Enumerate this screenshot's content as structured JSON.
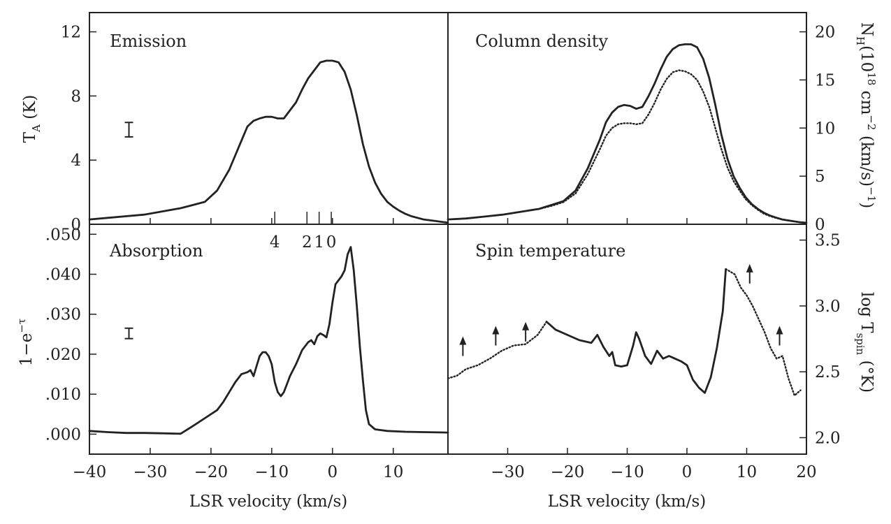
{
  "figure": {
    "xlabel": "LSR velocity (km/s)",
    "left_column_xticks": [
      "−40",
      "−30",
      "−20",
      "−10",
      "0",
      "10"
    ],
    "right_column_xticks": [
      "−30",
      "−20",
      "−10",
      "0",
      "10",
      "20"
    ]
  },
  "chart_data": [
    {
      "panel": "top-left",
      "type": "line",
      "title": "Emission",
      "ylabel_left": {
        "main": "T",
        "sub": "A",
        "rest": " (K)"
      },
      "xlim": [
        -40,
        19
      ],
      "ylim": [
        0,
        13.2
      ],
      "yticks": [
        {
          "value": 0,
          "label": "0"
        },
        {
          "value": 4,
          "label": "4"
        },
        {
          "value": 8,
          "label": "8"
        },
        {
          "value": 12,
          "label": "12"
        }
      ],
      "velocity_markers": {
        "labels": [
          "4",
          "2",
          "1",
          "0"
        ],
        "x": [
          -9.5,
          -4.2,
          -2.2,
          -0.2
        ]
      },
      "error_bar": {
        "x": -33.5,
        "center": 5.9,
        "half_height": 0.45
      },
      "series": [
        {
          "style": "solid",
          "x": [
            -40,
            -37,
            -34,
            -31,
            -28,
            -25,
            -23,
            -21,
            -19,
            -17,
            -15,
            -14,
            -13,
            -12,
            -11,
            -10,
            -9,
            -8,
            -7,
            -6,
            -5,
            -4,
            -3,
            -2,
            -1,
            0,
            1,
            2,
            3,
            4,
            5,
            6,
            7,
            8,
            9,
            10,
            11,
            12,
            13,
            14,
            15,
            16,
            17,
            18,
            19
          ],
          "y": [
            0.3,
            0.4,
            0.5,
            0.6,
            0.8,
            1.0,
            1.2,
            1.4,
            2.1,
            3.4,
            5.2,
            6.1,
            6.45,
            6.6,
            6.7,
            6.7,
            6.6,
            6.6,
            7.1,
            7.6,
            8.4,
            9.1,
            9.6,
            10.1,
            10.2,
            10.2,
            10.1,
            9.5,
            8.4,
            6.8,
            5.0,
            3.6,
            2.6,
            1.9,
            1.4,
            1.1,
            0.85,
            0.65,
            0.5,
            0.4,
            0.3,
            0.25,
            0.2,
            0.15,
            0.1
          ]
        }
      ]
    },
    {
      "panel": "top-right",
      "type": "line",
      "title": "Column density",
      "ylabel_right": {
        "pre": "N",
        "sub": "H",
        "mid": "(10",
        "sup1": "18",
        "mid2": " cm",
        "sup2": "−2",
        "mid3": " (km/s)",
        "sup3": "−1",
        "post": ")"
      },
      "xlim": [
        -40,
        19
      ],
      "ylim": [
        0,
        22
      ],
      "yticks": [
        {
          "value": 0,
          "label": "0"
        },
        {
          "value": 5,
          "label": "5"
        },
        {
          "value": 10,
          "label": "10"
        },
        {
          "value": 15,
          "label": "15"
        },
        {
          "value": 20,
          "label": "20"
        }
      ],
      "series": [
        {
          "style": "solid",
          "x": [
            -40,
            -37,
            -34,
            -31,
            -28,
            -25,
            -23,
            -21,
            -19,
            -17,
            -15,
            -14,
            -13,
            -12,
            -11,
            -10,
            -9,
            -8,
            -7,
            -6,
            -5,
            -4,
            -3,
            -2,
            -1,
            0,
            1,
            2,
            3,
            4,
            5,
            6,
            7,
            8,
            9,
            10,
            11,
            12,
            13,
            14,
            15,
            16,
            17,
            18,
            19
          ],
          "y": [
            0.5,
            0.6,
            0.8,
            1.0,
            1.3,
            1.6,
            2.0,
            2.4,
            3.5,
            5.8,
            8.8,
            10.6,
            11.6,
            12.2,
            12.4,
            12.3,
            12.0,
            12.2,
            13.3,
            14.6,
            16.1,
            17.4,
            18.2,
            18.6,
            18.7,
            18.7,
            18.4,
            17.2,
            15.2,
            12.4,
            9.3,
            6.8,
            5.0,
            3.8,
            2.8,
            2.1,
            1.6,
            1.2,
            0.9,
            0.7,
            0.5,
            0.4,
            0.3,
            0.2,
            0.15
          ]
        },
        {
          "style": "dotted",
          "x": [
            -40,
            -37,
            -34,
            -31,
            -28,
            -25,
            -23,
            -21,
            -19,
            -17,
            -15,
            -14,
            -13,
            -12,
            -11,
            -10,
            -9,
            -8,
            -7,
            -6,
            -5,
            -4,
            -3,
            -2,
            -1,
            0,
            1,
            2,
            3,
            4,
            5,
            6,
            7,
            8,
            9,
            10,
            11,
            12,
            13,
            14,
            15,
            16,
            17,
            18,
            19
          ],
          "y": [
            0.5,
            0.6,
            0.8,
            1.0,
            1.3,
            1.6,
            1.9,
            2.3,
            3.2,
            5.2,
            7.8,
            9.2,
            10.0,
            10.4,
            10.5,
            10.5,
            10.4,
            10.5,
            11.4,
            12.6,
            14.0,
            15.1,
            15.8,
            16.0,
            15.9,
            15.6,
            15.0,
            13.8,
            12.2,
            10.0,
            7.8,
            5.9,
            4.5,
            3.5,
            2.6,
            2.0,
            1.5,
            1.1,
            0.85,
            0.65,
            0.5,
            0.4,
            0.3,
            0.2,
            0.15
          ]
        }
      ]
    },
    {
      "panel": "bottom-left",
      "type": "line",
      "title": "Absorption",
      "ylabel_left": {
        "main": "1−e",
        "sup": "−τ"
      },
      "xlim": [
        -40,
        19
      ],
      "ylim": [
        -0.005,
        0.0525
      ],
      "yticks": [
        {
          "value": 0.0,
          "label": ".000"
        },
        {
          "value": 0.01,
          "label": ".010"
        },
        {
          "value": 0.02,
          "label": ".020"
        },
        {
          "value": 0.03,
          "label": ".030"
        },
        {
          "value": 0.04,
          "label": ".040"
        },
        {
          "value": 0.05,
          "label": ".050"
        }
      ],
      "error_bar": {
        "x": -33.5,
        "center": 0.0252,
        "half_height": 0.0013
      },
      "series": [
        {
          "style": "solid",
          "x": [
            -40,
            -37,
            -34,
            -31,
            -28,
            -25,
            -23,
            -21,
            -19,
            -18,
            -17,
            -16,
            -15,
            -14,
            -13.5,
            -13,
            -12.5,
            -12,
            -11.5,
            -11,
            -10.5,
            -10,
            -9.5,
            -9,
            -8.5,
            -8,
            -7.5,
            -7,
            -6,
            -5,
            -4,
            -3.5,
            -3,
            -2.5,
            -2,
            -1.5,
            -1,
            -0.5,
            0,
            0.5,
            1,
            1.5,
            2,
            2.5,
            3,
            3.5,
            4,
            4.5,
            5,
            5.5,
            6,
            7,
            9,
            12,
            15,
            19
          ],
          "y": [
            0.0008,
            0.0005,
            0.0003,
            0.0003,
            0.0002,
            0.0001,
            0.002,
            0.004,
            0.006,
            0.008,
            0.0105,
            0.013,
            0.015,
            0.0155,
            0.016,
            0.0145,
            0.017,
            0.0195,
            0.0205,
            0.0205,
            0.0195,
            0.0175,
            0.013,
            0.0105,
            0.0095,
            0.0105,
            0.0125,
            0.0145,
            0.0175,
            0.021,
            0.023,
            0.0235,
            0.0225,
            0.0245,
            0.0252,
            0.0248,
            0.0242,
            0.0275,
            0.033,
            0.0375,
            0.0385,
            0.0395,
            0.041,
            0.045,
            0.0468,
            0.041,
            0.032,
            0.022,
            0.0135,
            0.006,
            0.0025,
            0.0012,
            0.0008,
            0.0006,
            0.0005,
            0.0004
          ]
        }
      ]
    },
    {
      "panel": "bottom-right",
      "type": "line",
      "title": "Spin temperature",
      "ylabel_right": {
        "pre": "log T",
        "sub": "spin",
        "post": " (°K)"
      },
      "xlim": [
        -40,
        20
      ],
      "ylim": [
        1.875,
        3.62
      ],
      "yticks": [
        {
          "value": 2.0,
          "label": "2.0"
        },
        {
          "value": 2.5,
          "label": "2.5"
        },
        {
          "value": 3.0,
          "label": "3.0"
        },
        {
          "value": 3.5,
          "label": "3.5"
        }
      ],
      "arrows_x": [
        -37.5,
        -32,
        -27,
        10.5,
        15.5
      ],
      "arrows_base_y": [
        2.62,
        2.7,
        2.73,
        3.17,
        2.7
      ],
      "series": [
        {
          "style": "dotted",
          "x": [
            -40,
            -38.5,
            -37,
            -35,
            -33,
            -31,
            -29,
            -27,
            -25,
            -23.5
          ],
          "y": [
            2.45,
            2.47,
            2.52,
            2.55,
            2.6,
            2.66,
            2.7,
            2.71,
            2.78,
            2.88
          ]
        },
        {
          "style": "solid",
          "x": [
            -23.5,
            -22,
            -20,
            -18,
            -16,
            -15,
            -14,
            -13,
            -12.5,
            -12,
            -11,
            -10,
            -9,
            -8.5,
            -8,
            -7,
            -6,
            -5,
            -4,
            -3,
            -2,
            -1,
            0,
            1,
            2,
            3,
            4,
            5,
            6,
            6.5
          ],
          "y": [
            2.88,
            2.82,
            2.78,
            2.74,
            2.72,
            2.78,
            2.69,
            2.62,
            2.65,
            2.55,
            2.54,
            2.55,
            2.7,
            2.8,
            2.75,
            2.62,
            2.56,
            2.66,
            2.6,
            2.62,
            2.6,
            2.58,
            2.55,
            2.44,
            2.38,
            2.34,
            2.46,
            2.68,
            2.96,
            3.28
          ]
        },
        {
          "style": "dotted",
          "x": [
            6.5,
            8,
            9,
            10,
            11,
            12,
            13,
            14,
            15,
            16,
            17,
            18,
            19
          ],
          "y": [
            3.28,
            3.24,
            3.14,
            3.08,
            3.0,
            2.9,
            2.8,
            2.68,
            2.6,
            2.62,
            2.45,
            2.32,
            2.36
          ]
        }
      ]
    }
  ]
}
